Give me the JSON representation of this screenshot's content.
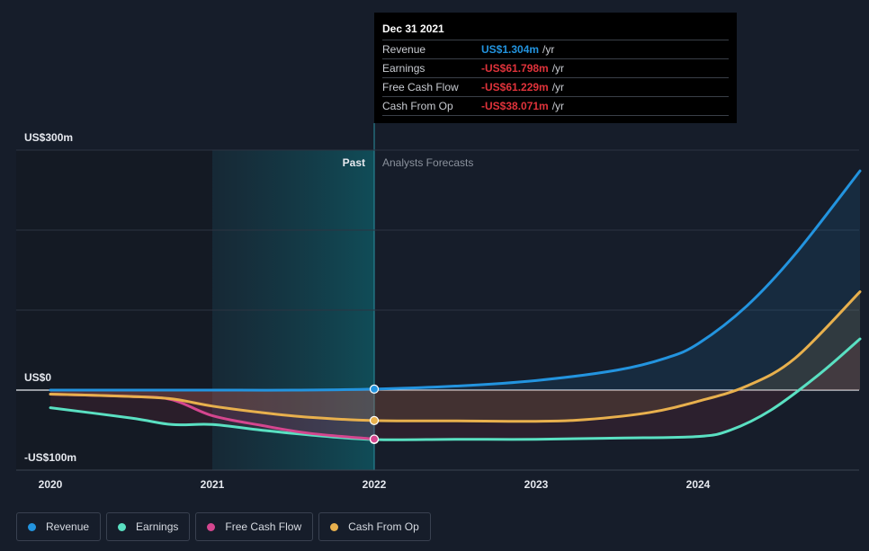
{
  "chart_data": {
    "type": "line",
    "y_axis_labels": [
      "US$300m",
      "US$0",
      "-US$100m"
    ],
    "ylim": [
      -100,
      300
    ],
    "x_ticks": [
      "2020",
      "2021",
      "2022",
      "2023",
      "2024"
    ],
    "xlim": [
      2020.0,
      2025.0
    ],
    "regions": {
      "past_label": "Past",
      "forecast_label": "Analysts Forecasts",
      "divider_x": 2022.0
    },
    "grid": true,
    "legend_position": "bottom-left",
    "series": [
      {
        "name": "Revenue",
        "color": "#2394df",
        "points": [
          [
            2020.0,
            0
          ],
          [
            2020.5,
            0
          ],
          [
            2021.0,
            0
          ],
          [
            2021.5,
            0
          ],
          [
            2022.0,
            1.3
          ],
          [
            2022.5,
            5
          ],
          [
            2023.0,
            12
          ],
          [
            2023.5,
            25
          ],
          [
            2023.8,
            40
          ],
          [
            2024.0,
            58
          ],
          [
            2024.3,
            105
          ],
          [
            2024.6,
            170
          ],
          [
            2025.0,
            274
          ]
        ]
      },
      {
        "name": "Earnings",
        "color": "#5ae0c2",
        "points": [
          [
            2020.0,
            -22
          ],
          [
            2020.5,
            -35
          ],
          [
            2020.75,
            -43
          ],
          [
            2021.0,
            -43
          ],
          [
            2021.3,
            -50
          ],
          [
            2021.6,
            -56
          ],
          [
            2022.0,
            -61.8
          ],
          [
            2022.5,
            -61.5
          ],
          [
            2023.0,
            -61.5
          ],
          [
            2023.5,
            -60
          ],
          [
            2024.0,
            -58
          ],
          [
            2024.2,
            -50
          ],
          [
            2024.45,
            -25
          ],
          [
            2024.75,
            20
          ],
          [
            2025.0,
            64
          ]
        ]
      },
      {
        "name": "Free Cash Flow",
        "color": "#d4468f",
        "points": [
          [
            2020.0,
            -5
          ],
          [
            2020.5,
            -8
          ],
          [
            2020.75,
            -12
          ],
          [
            2021.0,
            -32
          ],
          [
            2021.3,
            -44
          ],
          [
            2021.6,
            -54
          ],
          [
            2022.0,
            -61.2
          ]
        ]
      },
      {
        "name": "Cash From Op",
        "color": "#e8b04d",
        "points": [
          [
            2020.0,
            -5
          ],
          [
            2020.5,
            -8
          ],
          [
            2020.75,
            -11
          ],
          [
            2021.0,
            -20
          ],
          [
            2021.3,
            -28
          ],
          [
            2021.6,
            -34
          ],
          [
            2022.0,
            -38.1
          ],
          [
            2022.5,
            -38.5
          ],
          [
            2023.0,
            -39
          ],
          [
            2023.3,
            -37
          ],
          [
            2023.7,
            -28
          ],
          [
            2024.0,
            -14
          ],
          [
            2024.3,
            5
          ],
          [
            2024.6,
            40
          ],
          [
            2025.0,
            123
          ]
        ]
      }
    ]
  },
  "tooltip": {
    "date": "Dec 31 2021",
    "rows": [
      {
        "label": "Revenue",
        "value": "US$1.304m",
        "unit": "/yr",
        "color": "#2394df"
      },
      {
        "label": "Earnings",
        "value": "-US$61.798m",
        "unit": "/yr",
        "color": "#e0333b"
      },
      {
        "label": "Free Cash Flow",
        "value": "-US$61.229m",
        "unit": "/yr",
        "color": "#e0333b"
      },
      {
        "label": "Cash From Op",
        "value": "-US$38.071m",
        "unit": "/yr",
        "color": "#e0333b"
      }
    ]
  },
  "legend": [
    {
      "label": "Revenue",
      "color": "#2394df"
    },
    {
      "label": "Earnings",
      "color": "#5ae0c2"
    },
    {
      "label": "Free Cash Flow",
      "color": "#d4468f"
    },
    {
      "label": "Cash From Op",
      "color": "#e8b04d"
    }
  ]
}
